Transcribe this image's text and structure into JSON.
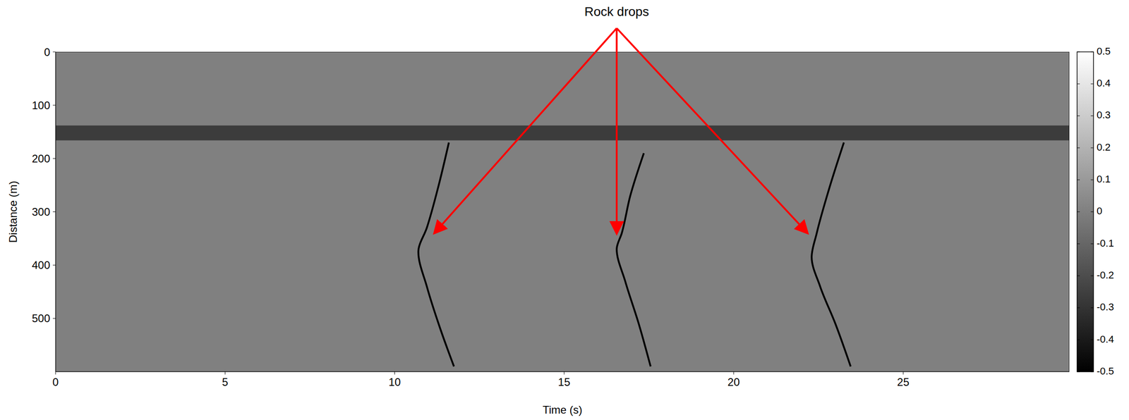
{
  "chart_data": {
    "type": "line",
    "x_label": "Time (s)",
    "y_label": "Distance (m)",
    "xlim": [
      0,
      29.9
    ],
    "xticks": [
      0,
      5,
      10,
      15,
      20,
      25
    ],
    "ylim": [
      0,
      600
    ],
    "yticks": [
      0,
      100,
      200,
      300,
      400,
      500
    ],
    "grid": false,
    "series": [
      {
        "color": "#000000",
        "line_style": "solid",
        "x": [
          11.6,
          11.3,
          10.95,
          10.7,
          10.95,
          11.35,
          11.75
        ],
        "y": [
          170,
          250,
          330,
          375,
          440,
          520,
          590
        ]
      },
      {
        "color": "#000000",
        "line_style": "solid",
        "x": [
          17.35,
          16.95,
          16.7,
          16.55,
          16.8,
          17.2,
          17.55
        ],
        "y": [
          190,
          270,
          340,
          370,
          430,
          510,
          590
        ]
      },
      {
        "color": "#000000",
        "line_style": "solid",
        "x": [
          23.25,
          22.8,
          22.45,
          22.3,
          22.55,
          23.0,
          23.45
        ],
        "y": [
          170,
          260,
          340,
          385,
          440,
          510,
          590
        ]
      }
    ],
    "band": {
      "y": [
        138,
        166
      ],
      "color": "#3c3c3c"
    },
    "colorbar": {
      "range": [
        -0.5,
        0.5
      ],
      "ticks": [
        0.5,
        0.4,
        0.3,
        0.2,
        0.1,
        0,
        -0.1,
        -0.2,
        -0.3,
        -0.4,
        -0.5
      ]
    },
    "annotation": {
      "text": "Rock drops",
      "color": "#ff0000",
      "targets": [
        {
          "x": 11.2,
          "y": 338
        },
        {
          "x": 16.55,
          "y": 338
        },
        {
          "x": 22.15,
          "y": 338
        }
      ]
    }
  }
}
